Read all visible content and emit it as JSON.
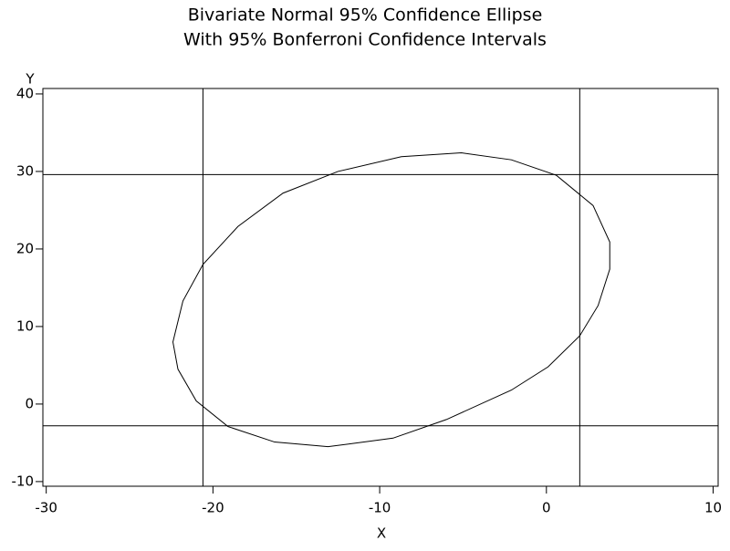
{
  "chart_data": {
    "type": "line",
    "title": "Bivariate Normal 95% Confidence Ellipse",
    "subtitle": "With 95% Bonferroni Confidence Intervals",
    "xlabel": "X",
    "ylabel": "Y",
    "xlim": [
      -30.2,
      10.3
    ],
    "ylim": [
      -10.6,
      40.7
    ],
    "xticks": [
      -30,
      -20,
      -10,
      0,
      10
    ],
    "yticks": [
      -10,
      0,
      10,
      20,
      30,
      40
    ],
    "vlines": [
      -20.6,
      2.0
    ],
    "hlines": [
      29.6,
      -2.8
    ],
    "series": [
      {
        "color": "#000000",
        "x": [
          -22.4,
          -21.8,
          -20.6,
          -18.5,
          -15.8,
          -12.5,
          -8.7,
          -5.1,
          -2.1,
          0.6,
          2.8,
          3.8,
          3.8,
          3.1,
          2.0,
          0.1,
          -2.1,
          -6.0,
          -9.2,
          -13.1,
          -16.3,
          -19.1,
          -21.0,
          -22.1
        ],
        "y": [
          8.0,
          13.3,
          18.0,
          22.9,
          27.2,
          30.0,
          31.9,
          32.4,
          31.5,
          29.5,
          25.6,
          20.9,
          17.4,
          12.7,
          8.8,
          4.8,
          1.8,
          -2.0,
          -4.4,
          -5.5,
          -4.9,
          -2.9,
          0.4,
          4.5
        ]
      }
    ]
  }
}
